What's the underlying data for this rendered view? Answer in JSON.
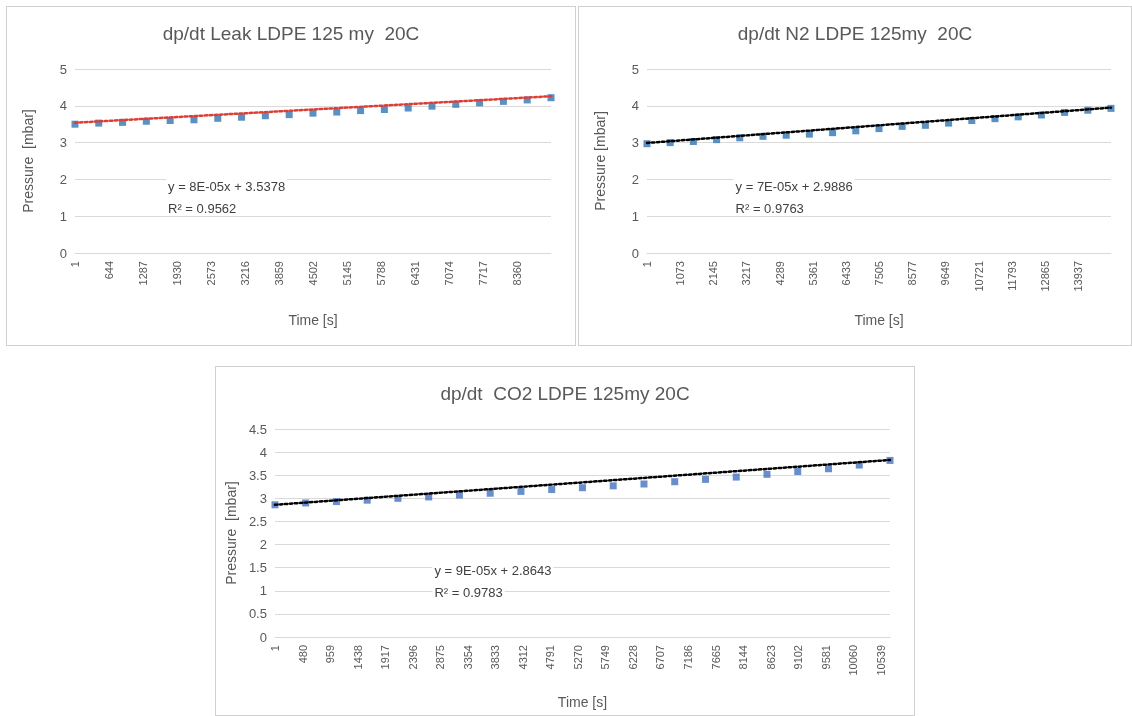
{
  "chart_data": [
    {
      "type": "scatter",
      "title": "dp/dt Leak LDPE 125 my  20C",
      "xlabel": "Time [s]",
      "ylabel": "Pressure  [mbar]",
      "grid": "y",
      "xlim": [
        1,
        9000
      ],
      "xticks": [
        1,
        644,
        1287,
        1930,
        2573,
        3216,
        3859,
        4502,
        5145,
        5788,
        6431,
        7074,
        7717,
        8360
      ],
      "ylim": [
        0,
        5
      ],
      "yticks": [
        0,
        1,
        2,
        3,
        4,
        5
      ],
      "annotations": [
        "y = 8E-05x + 3.5378",
        "R² = 0.9562"
      ],
      "series": [
        {
          "marker": "square",
          "color": "#2e75b6",
          "x": [
            1,
            450,
            900,
            1350,
            1800,
            2250,
            2700,
            3150,
            3600,
            4050,
            4500,
            4950,
            5400,
            5850,
            6300,
            6750,
            7200,
            7650,
            8100,
            8550,
            9000
          ],
          "values": [
            3.5,
            3.53,
            3.55,
            3.58,
            3.6,
            3.62,
            3.66,
            3.69,
            3.73,
            3.76,
            3.8,
            3.83,
            3.87,
            3.9,
            3.94,
            3.99,
            4.04,
            4.08,
            4.12,
            4.16,
            4.22
          ]
        },
        {
          "type": "line",
          "marker": "none",
          "line_style": "dotted",
          "color": "#e03c31",
          "x": [
            1,
            9000
          ],
          "values": [
            3.54,
            4.26
          ]
        }
      ]
    },
    {
      "type": "scatter",
      "title": "dp/dt N2 LDPE 125my  20C",
      "xlabel": "Time [s]",
      "ylabel": "Pressure [mbar]",
      "grid": "y",
      "xlim": [
        1,
        15000
      ],
      "xticks": [
        1,
        1073,
        2145,
        3217,
        4289,
        5361,
        6433,
        7505,
        8577,
        9649,
        10721,
        11793,
        12865,
        13937
      ],
      "ylim": [
        0,
        5
      ],
      "yticks": [
        0,
        1,
        2,
        3,
        4,
        5
      ],
      "annotations": [
        "y = 7E-05x + 2.9886",
        "R² = 0.9763"
      ],
      "series": [
        {
          "marker": "square",
          "color": "#2e75b6",
          "x": [
            1,
            750,
            1500,
            2250,
            3000,
            3750,
            4500,
            5250,
            6000,
            6750,
            7500,
            8250,
            9000,
            9750,
            10500,
            11250,
            12000,
            12750,
            13500,
            14250,
            15000
          ],
          "values": [
            2.97,
            3.0,
            3.03,
            3.08,
            3.13,
            3.17,
            3.2,
            3.23,
            3.27,
            3.32,
            3.38,
            3.44,
            3.47,
            3.53,
            3.6,
            3.65,
            3.7,
            3.75,
            3.82,
            3.88,
            3.93
          ]
        },
        {
          "type": "line",
          "marker": "none",
          "line_style": "dotted",
          "color": "#000000",
          "x": [
            1,
            15000
          ],
          "values": [
            2.99,
            3.95
          ]
        }
      ]
    },
    {
      "type": "scatter",
      "title": "dp/dt  CO2 LDPE 125my 20C",
      "xlabel": "Time [s]",
      "ylabel": "Pressure  [mbar]",
      "grid": "y",
      "xlim": [
        1,
        10700
      ],
      "xticks": [
        1,
        480,
        959,
        1438,
        1917,
        2396,
        2875,
        3354,
        3833,
        4312,
        4791,
        5270,
        5749,
        6228,
        6707,
        7186,
        7665,
        8144,
        8623,
        9102,
        9581,
        10060,
        10539
      ],
      "ylim": [
        0,
        4.5
      ],
      "yticks": [
        0,
        0.5,
        1,
        1.5,
        2,
        2.5,
        3,
        3.5,
        4,
        4.5
      ],
      "annotations": [
        "y = 9E-05x + 2.8643",
        "R² = 0.9783"
      ],
      "series": [
        {
          "marker": "square",
          "color": "#4472c4",
          "x": [
            1,
            535,
            1070,
            1605,
            2140,
            2675,
            3210,
            3745,
            4280,
            4815,
            5350,
            5885,
            6420,
            6955,
            7490,
            8025,
            8560,
            9095,
            9630,
            10165,
            10700
          ],
          "values": [
            2.86,
            2.9,
            2.93,
            2.96,
            3.0,
            3.03,
            3.07,
            3.11,
            3.15,
            3.19,
            3.23,
            3.27,
            3.31,
            3.36,
            3.41,
            3.46,
            3.52,
            3.58,
            3.64,
            3.72,
            3.82
          ]
        },
        {
          "type": "line",
          "marker": "none",
          "line_style": "dotted",
          "color": "#000000",
          "x": [
            1,
            10700
          ],
          "values": [
            2.86,
            3.83
          ]
        }
      ]
    }
  ]
}
